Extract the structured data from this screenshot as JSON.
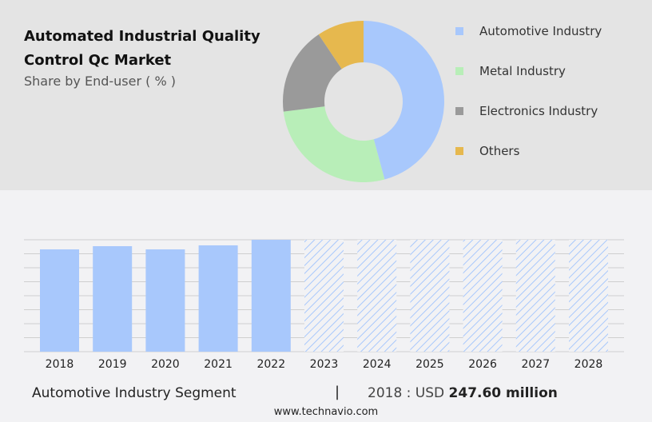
{
  "header": {
    "title": "Automated Industrial Quality Control Qc Market",
    "subtitle": "Share by End-user ( % )"
  },
  "chart_data": [
    {
      "type": "pie",
      "donut": true,
      "categories": [
        "Automotive Industry",
        "Metal Industry",
        "Electronics Industry",
        "Others"
      ],
      "values": [
        45.8,
        27.2,
        17.6,
        9.4
      ],
      "colors": [
        "#a8c8fc",
        "#b8eeb8",
        "#9a9a9a",
        "#e6b84e"
      ],
      "legend": "right"
    },
    {
      "type": "bar",
      "categories": [
        "2018",
        "2019",
        "2020",
        "2021",
        "2022",
        "2023",
        "2024",
        "2025",
        "2026",
        "2027",
        "2028"
      ],
      "values": [
        247.6,
        255.3,
        247.6,
        257.3,
        270.8,
        null,
        null,
        null,
        null,
        null,
        null
      ],
      "forecast": [
        "2023",
        "2024",
        "2025",
        "2026",
        "2027",
        "2028"
      ],
      "color": "#a8c8fc",
      "grid": true,
      "ylim": [
        0,
        270.8
      ]
    }
  ],
  "footer": {
    "segment": "Automotive Industry Segment",
    "separator": "|",
    "year_label": "2018 : USD",
    "value": "247.60 million",
    "site": "www.technavio.com"
  }
}
